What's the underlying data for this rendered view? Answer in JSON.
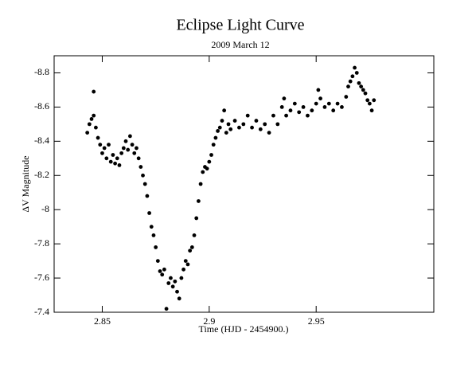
{
  "chart_data": {
    "type": "scatter",
    "title": "Eclipse Light Curve",
    "subtitle": "2009 March 12",
    "xlabel": "Time (HJD - 2454900.)",
    "ylabel": "ΔV Magnitude",
    "color": "#000000",
    "xlim": [
      2.8275,
      3.005
    ],
    "ylim": [
      -7.4,
      -8.9
    ],
    "xticks": [
      2.85,
      2.9,
      2.95
    ],
    "yticks": [
      -7.4,
      -7.6,
      -7.8,
      -8,
      -8.2,
      -8.4,
      -8.6,
      -8.8
    ],
    "x": [
      2.843,
      2.844,
      2.845,
      2.846,
      2.846,
      2.847,
      2.848,
      2.849,
      2.85,
      2.851,
      2.852,
      2.853,
      2.854,
      2.855,
      2.856,
      2.857,
      2.858,
      2.859,
      2.86,
      2.861,
      2.862,
      2.863,
      2.864,
      2.865,
      2.866,
      2.867,
      2.868,
      2.869,
      2.87,
      2.871,
      2.872,
      2.873,
      2.874,
      2.875,
      2.876,
      2.877,
      2.878,
      2.879,
      2.88,
      2.881,
      2.882,
      2.883,
      2.884,
      2.885,
      2.886,
      2.887,
      2.888,
      2.889,
      2.89,
      2.891,
      2.892,
      2.893,
      2.894,
      2.895,
      2.896,
      2.897,
      2.898,
      2.899,
      2.9,
      2.901,
      2.902,
      2.903,
      2.904,
      2.905,
      2.906,
      2.907,
      2.908,
      2.909,
      2.91,
      2.912,
      2.914,
      2.916,
      2.918,
      2.92,
      2.922,
      2.924,
      2.926,
      2.928,
      2.93,
      2.932,
      2.934,
      2.935,
      2.936,
      2.938,
      2.94,
      2.942,
      2.944,
      2.946,
      2.948,
      2.95,
      2.951,
      2.952,
      2.954,
      2.956,
      2.958,
      2.96,
      2.962,
      2.964,
      2.965,
      2.966,
      2.967,
      2.968,
      2.969,
      2.97,
      2.971,
      2.972,
      2.973,
      2.974,
      2.975,
      2.976,
      2.977
    ],
    "values": [
      -8.45,
      -8.5,
      -8.53,
      -8.69,
      -8.55,
      -8.48,
      -8.42,
      -8.38,
      -8.33,
      -8.36,
      -8.3,
      -8.38,
      -8.28,
      -8.32,
      -8.27,
      -8.3,
      -8.26,
      -8.33,
      -8.36,
      -8.4,
      -8.35,
      -8.43,
      -8.38,
      -8.33,
      -8.36,
      -8.3,
      -8.25,
      -8.2,
      -8.15,
      -8.08,
      -7.98,
      -7.9,
      -7.85,
      -7.78,
      -7.7,
      -7.64,
      -7.62,
      -7.65,
      -7.42,
      -7.57,
      -7.6,
      -7.55,
      -7.58,
      -7.52,
      -7.48,
      -7.6,
      -7.65,
      -7.7,
      -7.68,
      -7.76,
      -7.78,
      -7.85,
      -7.95,
      -8.05,
      -8.15,
      -8.22,
      -8.25,
      -8.24,
      -8.28,
      -8.32,
      -8.38,
      -8.42,
      -8.46,
      -8.48,
      -8.52,
      -8.58,
      -8.45,
      -8.5,
      -8.47,
      -8.52,
      -8.48,
      -8.5,
      -8.55,
      -8.48,
      -8.52,
      -8.47,
      -8.5,
      -8.45,
      -8.55,
      -8.5,
      -8.6,
      -8.65,
      -8.55,
      -8.58,
      -8.62,
      -8.57,
      -8.6,
      -8.55,
      -8.58,
      -8.62,
      -8.7,
      -8.65,
      -8.6,
      -8.62,
      -8.58,
      -8.62,
      -8.6,
      -8.66,
      -8.72,
      -8.75,
      -8.78,
      -8.83,
      -8.8,
      -8.74,
      -8.72,
      -8.7,
      -8.68,
      -8.64,
      -8.62,
      -8.58,
      -8.64
    ]
  }
}
